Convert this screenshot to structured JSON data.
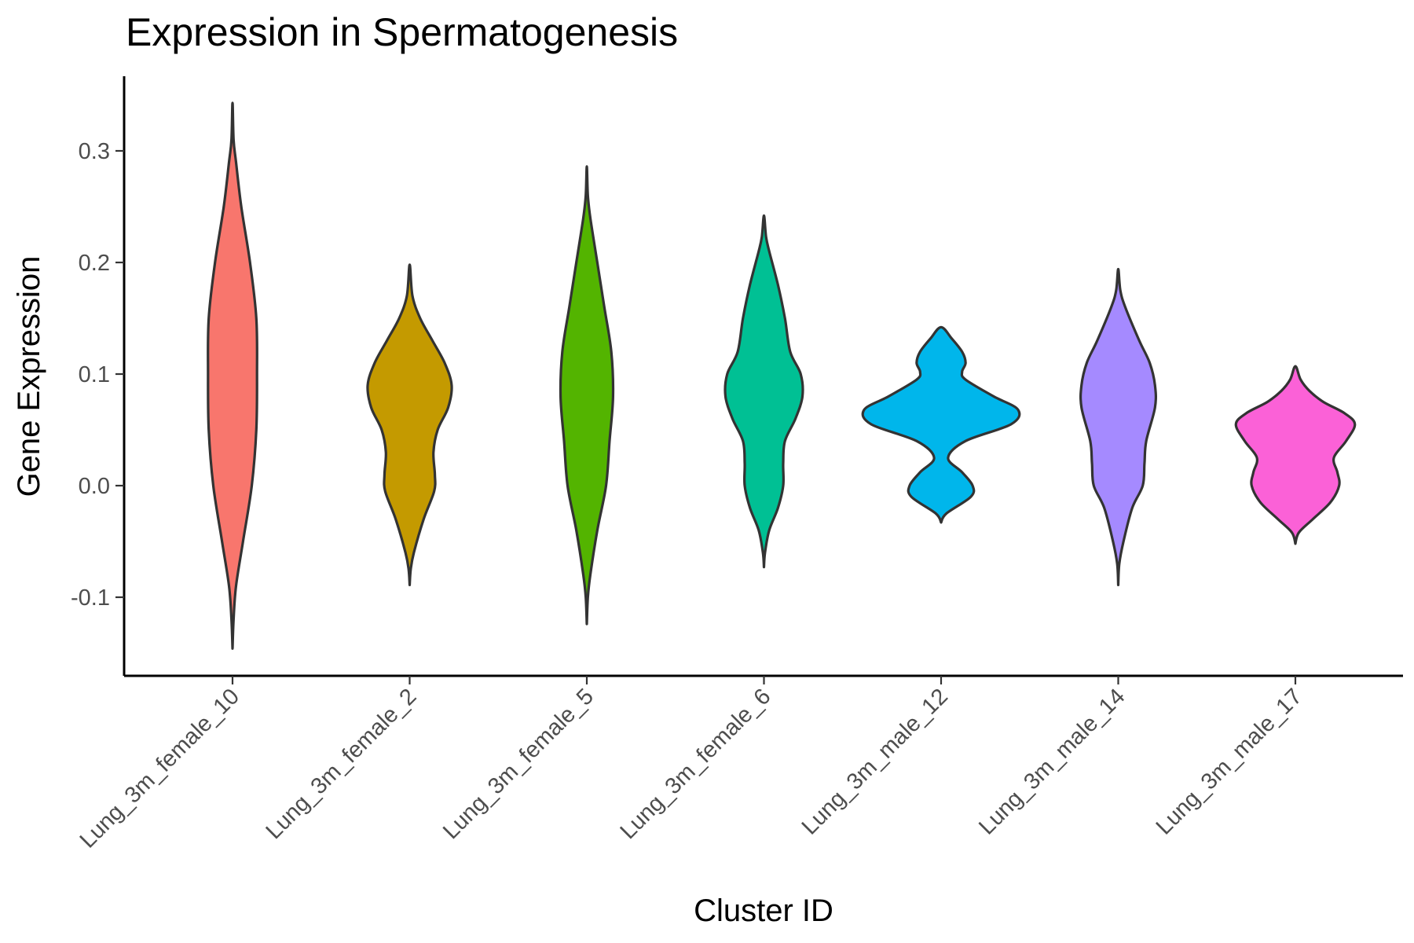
{
  "chart_data": {
    "type": "violin",
    "title": "Expression in Spermatogenesis",
    "xlabel": "Cluster ID",
    "ylabel": "Gene Expression",
    "ylim": [
      -0.17,
      0.37
    ],
    "yticks": [
      -0.1,
      0.0,
      0.1,
      0.2,
      0.3
    ],
    "ytick_labels": [
      "-0.1",
      "0.0",
      "0.1",
      "0.2",
      "0.3"
    ],
    "grid": false,
    "legend": "none",
    "categories": [
      {
        "name": "Lung_3m_female_10",
        "color": "#F8766D",
        "profile": [
          [
            -0.146,
            0.0
          ],
          [
            -0.12,
            0.3
          ],
          [
            -0.09,
            1.0
          ],
          [
            -0.05,
            3.0
          ],
          [
            0.0,
            5.5
          ],
          [
            0.05,
            6.8
          ],
          [
            0.1,
            7.0
          ],
          [
            0.15,
            6.8
          ],
          [
            0.2,
            5.0
          ],
          [
            0.25,
            2.5
          ],
          [
            0.29,
            1.0
          ],
          [
            0.31,
            0.3
          ],
          [
            0.343,
            0.0
          ]
        ]
      },
      {
        "name": "Lung_3m_female_2",
        "color": "#C49A00",
        "profile": [
          [
            -0.089,
            0.0
          ],
          [
            -0.075,
            0.3
          ],
          [
            -0.06,
            1.2
          ],
          [
            -0.03,
            4.0
          ],
          [
            -0.005,
            7.0
          ],
          [
            0.01,
            7.2
          ],
          [
            0.03,
            6.8
          ],
          [
            0.05,
            8.0
          ],
          [
            0.07,
            11.0
          ],
          [
            0.09,
            12.0
          ],
          [
            0.11,
            10.0
          ],
          [
            0.13,
            6.5
          ],
          [
            0.15,
            3.0
          ],
          [
            0.17,
            0.8
          ],
          [
            0.198,
            0.0
          ]
        ]
      },
      {
        "name": "Lung_3m_female_5",
        "color": "#53B400",
        "profile": [
          [
            -0.124,
            0.0
          ],
          [
            -0.1,
            0.3
          ],
          [
            -0.08,
            1.0
          ],
          [
            -0.04,
            3.0
          ],
          [
            0.0,
            5.5
          ],
          [
            0.04,
            6.5
          ],
          [
            0.08,
            7.5
          ],
          [
            0.12,
            7.0
          ],
          [
            0.16,
            5.0
          ],
          [
            0.2,
            3.0
          ],
          [
            0.24,
            1.0
          ],
          [
            0.26,
            0.3
          ],
          [
            0.286,
            0.0
          ]
        ]
      },
      {
        "name": "Lung_3m_female_6",
        "color": "#00C094",
        "profile": [
          [
            -0.073,
            0.0
          ],
          [
            -0.06,
            0.3
          ],
          [
            -0.04,
            1.5
          ],
          [
            -0.02,
            4.0
          ],
          [
            0.0,
            5.5
          ],
          [
            0.02,
            5.5
          ],
          [
            0.04,
            6.0
          ],
          [
            0.06,
            9.0
          ],
          [
            0.08,
            11.0
          ],
          [
            0.1,
            10.5
          ],
          [
            0.12,
            7.5
          ],
          [
            0.15,
            6.0
          ],
          [
            0.18,
            4.0
          ],
          [
            0.21,
            1.5
          ],
          [
            0.223,
            0.6
          ],
          [
            0.242,
            0.0
          ]
        ]
      },
      {
        "name": "Lung_3m_male_12",
        "color": "#00B6EB",
        "profile": [
          [
            -0.033,
            0.0
          ],
          [
            -0.025,
            1.5
          ],
          [
            -0.01,
            8.5
          ],
          [
            0.0,
            9.0
          ],
          [
            0.012,
            6.0
          ],
          [
            0.025,
            2.0
          ],
          [
            0.04,
            7.0
          ],
          [
            0.055,
            20.0
          ],
          [
            0.068,
            22.0
          ],
          [
            0.08,
            15.0
          ],
          [
            0.095,
            7.0
          ],
          [
            0.102,
            6.0
          ],
          [
            0.11,
            7.0
          ],
          [
            0.12,
            6.0
          ],
          [
            0.132,
            3.0
          ],
          [
            0.142,
            0.0
          ]
        ]
      },
      {
        "name": "Lung_3m_male_14",
        "color": "#A58AFF",
        "profile": [
          [
            -0.089,
            0.0
          ],
          [
            -0.07,
            0.3
          ],
          [
            -0.05,
            1.5
          ],
          [
            -0.02,
            4.0
          ],
          [
            0.0,
            7.0
          ],
          [
            0.02,
            7.5
          ],
          [
            0.04,
            8.0
          ],
          [
            0.07,
            10.5
          ],
          [
            0.09,
            10.5
          ],
          [
            0.11,
            9.0
          ],
          [
            0.13,
            6.0
          ],
          [
            0.16,
            2.0
          ],
          [
            0.175,
            0.6
          ],
          [
            0.194,
            0.0
          ]
        ]
      },
      {
        "name": "Lung_3m_male_17",
        "color": "#FB61D7",
        "profile": [
          [
            -0.052,
            0.0
          ],
          [
            -0.042,
            1.0
          ],
          [
            -0.03,
            5.0
          ],
          [
            -0.015,
            10.0
          ],
          [
            0.0,
            12.5
          ],
          [
            0.012,
            12.0
          ],
          [
            0.025,
            11.0
          ],
          [
            0.04,
            14.5
          ],
          [
            0.055,
            17.0
          ],
          [
            0.065,
            14.0
          ],
          [
            0.075,
            8.0
          ],
          [
            0.085,
            4.0
          ],
          [
            0.095,
            1.5
          ],
          [
            0.107,
            0.0
          ]
        ]
      }
    ]
  }
}
